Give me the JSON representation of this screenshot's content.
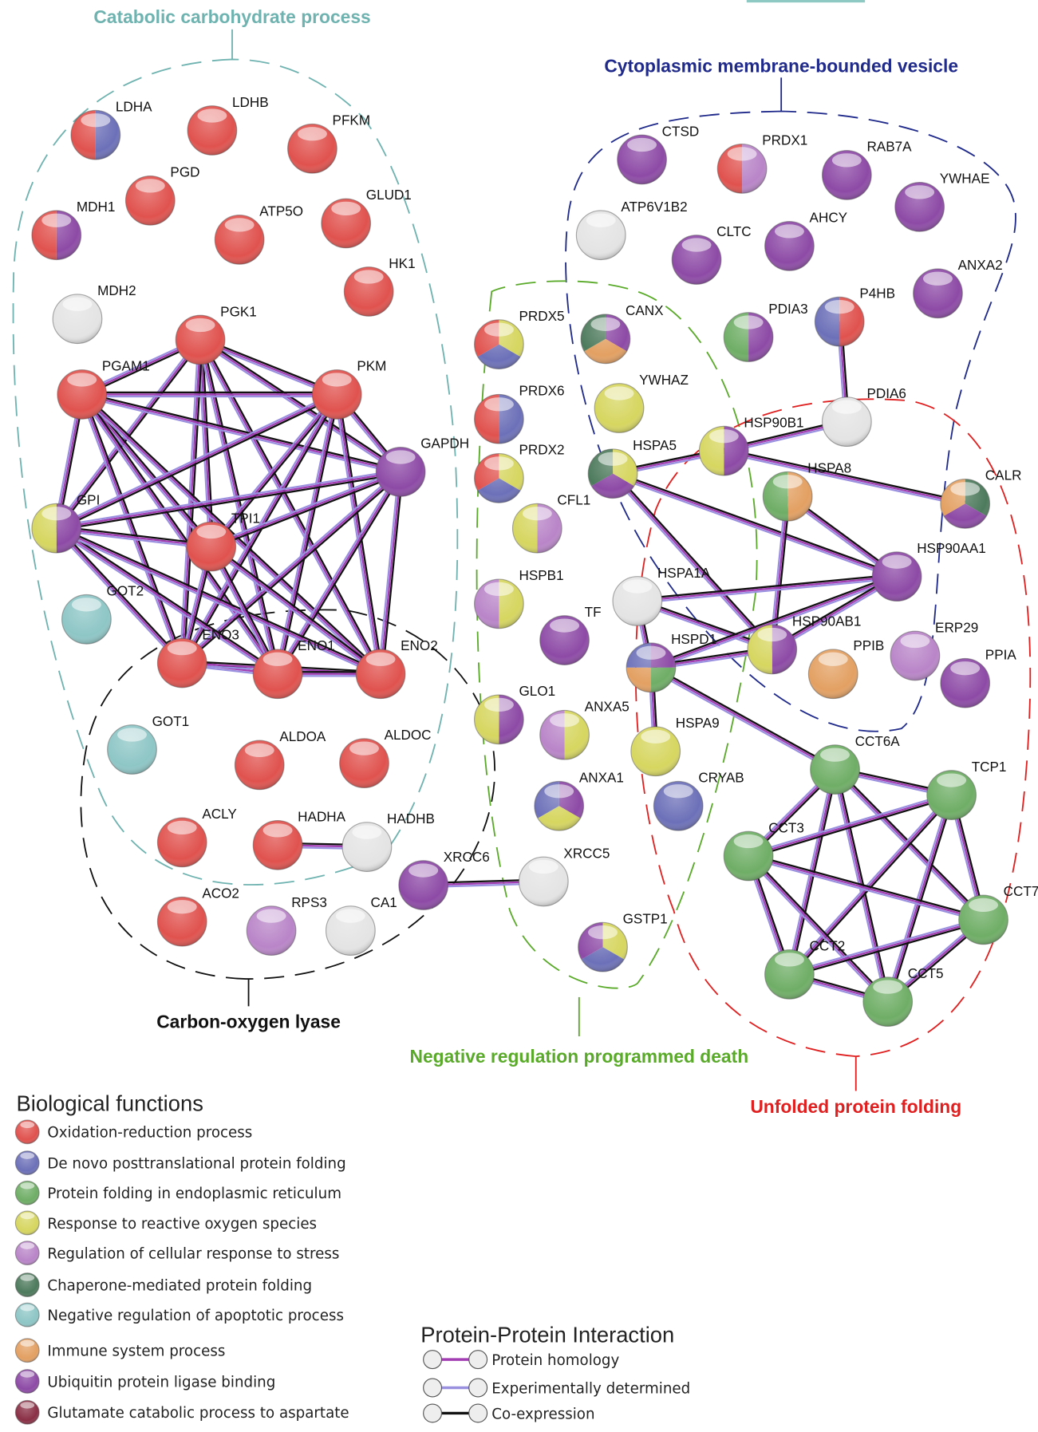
{
  "clusters": [
    {
      "label": "Catabolic carbohydrate process"
    },
    {
      "label": "Cytoplasmic membrane-bounded vesicle"
    },
    {
      "label": "Carbon-oxygen lyase"
    },
    {
      "label": "Negative regulation programmed death"
    },
    {
      "label": "Unfolded protein folding"
    }
  ],
  "nodes": [
    {
      "label": "LDHA"
    },
    {
      "label": "LDHB"
    },
    {
      "label": "PFKM"
    },
    {
      "label": "PGD"
    },
    {
      "label": "MDH1"
    },
    {
      "label": "ATP5O"
    },
    {
      "label": "GLUD1"
    },
    {
      "label": "HK1"
    },
    {
      "label": "MDH2"
    },
    {
      "label": "PGK1"
    },
    {
      "label": "PGAM1"
    },
    {
      "label": "PKM"
    },
    {
      "label": "GAPDH"
    },
    {
      "label": "GPI"
    },
    {
      "label": "TPI1"
    },
    {
      "label": "GOT2"
    },
    {
      "label": "ENO3"
    },
    {
      "label": "ENO1"
    },
    {
      "label": "ENO2"
    },
    {
      "label": "GOT1"
    },
    {
      "label": "ALDOA"
    },
    {
      "label": "ALDOC"
    },
    {
      "label": "ACLY"
    },
    {
      "label": "HADHA"
    },
    {
      "label": "HADHB"
    },
    {
      "label": "ACO2"
    },
    {
      "label": "RPS3"
    },
    {
      "label": "CA1"
    },
    {
      "label": "XRCC6"
    },
    {
      "label": "XRCC5"
    },
    {
      "label": "CTSD"
    },
    {
      "label": "PRDX1"
    },
    {
      "label": "RAB7A"
    },
    {
      "label": "YWHAE"
    },
    {
      "label": "ATP6V1B2"
    },
    {
      "label": "CLTC"
    },
    {
      "label": "AHCY"
    },
    {
      "label": "ANXA2"
    },
    {
      "label": "P4HB"
    },
    {
      "label": "PDIA3"
    },
    {
      "label": "PDIA6"
    },
    {
      "label": "PRDX5"
    },
    {
      "label": "CANX"
    },
    {
      "label": "YWHAZ"
    },
    {
      "label": "PRDX6"
    },
    {
      "label": "PRDX2"
    },
    {
      "label": "HSPA5"
    },
    {
      "label": "HSP90B1"
    },
    {
      "label": "HSPA8"
    },
    {
      "label": "CALR"
    },
    {
      "label": "CFL1"
    },
    {
      "label": "HSP90AA1"
    },
    {
      "label": "HSPB1"
    },
    {
      "label": "HSPA1A"
    },
    {
      "label": "TF"
    },
    {
      "label": "HSPD1"
    },
    {
      "label": "HSP90AB1"
    },
    {
      "label": "PPIB"
    },
    {
      "label": "ERP29"
    },
    {
      "label": "PPIA"
    },
    {
      "label": "GLO1"
    },
    {
      "label": "ANXA5"
    },
    {
      "label": "HSPA9"
    },
    {
      "label": "CCT6A"
    },
    {
      "label": "TCP1"
    },
    {
      "label": "ANXA1"
    },
    {
      "label": "CRYAB"
    },
    {
      "label": "CCT3"
    },
    {
      "label": "CCT7"
    },
    {
      "label": "CCT2"
    },
    {
      "label": "CCT5"
    },
    {
      "label": "GSTP1"
    }
  ],
  "legend": {
    "title": "Biological functions",
    "items": [
      "Oxidation-reduction process",
      "De novo posttranslational protein folding",
      "Protein folding in endoplasmic reticulum",
      "Response to reactive oxygen species",
      "Regulation of cellular response to stress",
      "Chaperone-mediated protein folding",
      "Negative regulation of apoptotic process",
      "Immune system process",
      "Ubiquitin protein ligase binding",
      "Glutamate catabolic process to aspartate"
    ]
  },
  "ppi_legend": {
    "title": "Protein-Protein Interaction",
    "items": [
      "Protein homology",
      "Experimentally determined",
      "Co-expression"
    ]
  }
}
